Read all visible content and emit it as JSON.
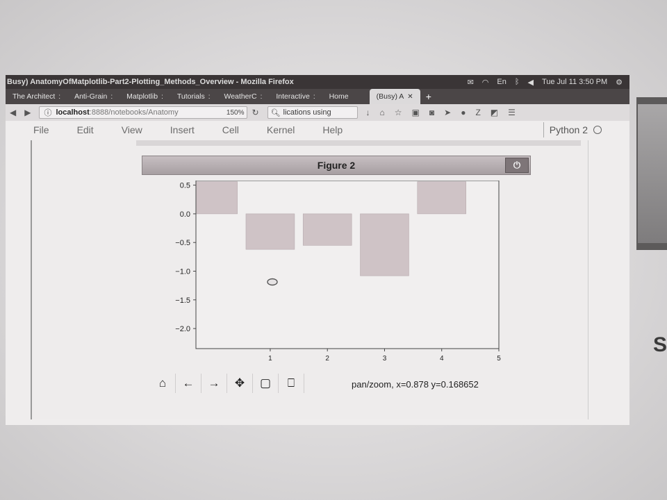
{
  "os_bar": {
    "window_title": "Busy) AnatomyOfMatplotlib-Part2-Plotting_Methods_Overview - Mozilla Firefox",
    "clock": "Tue Jul 11 3:50 PM",
    "lang": "En"
  },
  "tabs": [
    {
      "label": "The Architect"
    },
    {
      "label": "Anti-Grain"
    },
    {
      "label": "Matplotlib"
    },
    {
      "label": "Tutorials"
    },
    {
      "label": "WeatherC"
    },
    {
      "label": "Interactive"
    },
    {
      "label": "Home"
    },
    {
      "label": "(Busy) A",
      "active": true
    }
  ],
  "nav": {
    "url_host": "localhost",
    "url_path": ":8888/notebooks/Anatomy",
    "zoom": "150%",
    "search_value": "lications using"
  },
  "menu": {
    "items": [
      "File",
      "Edit",
      "View",
      "Insert",
      "Cell",
      "Kernel",
      "Help"
    ],
    "kernel_name": "Python 2"
  },
  "figure": {
    "title": "Figure 2",
    "status": "pan/zoom, x=0.878 y=0.168652"
  },
  "chart_data": {
    "type": "bar",
    "x": [
      0.0,
      1.0,
      2.0,
      3.0,
      4.0
    ],
    "values": [
      0.56,
      -0.62,
      -0.55,
      -1.08,
      0.56
    ],
    "bar_width": 0.85,
    "xlim": [
      -0.3,
      5.0
    ],
    "ylim": [
      -2.35,
      0.58
    ],
    "xticks": [
      1,
      2,
      3,
      4,
      5
    ],
    "yticks": [
      0.5,
      0.0,
      -0.5,
      -1.0,
      -1.5,
      -2.0
    ],
    "ytick_labels": [
      "0.5",
      "0.0",
      "−0.5",
      "−1.0",
      "−1.5",
      "−2.0"
    ],
    "bar_color": "#cfc3c6",
    "bar_edge": "#b8acaf",
    "grid": false
  },
  "toolbar": [
    {
      "name": "home-icon",
      "glyph": "⌂"
    },
    {
      "name": "back-icon",
      "glyph": "←"
    },
    {
      "name": "forward-icon",
      "glyph": "→"
    },
    {
      "name": "move-icon",
      "glyph": "✥"
    },
    {
      "name": "zoom-rect-icon",
      "glyph": "▢"
    },
    {
      "name": "save-icon",
      "glyph": "⎕"
    }
  ]
}
